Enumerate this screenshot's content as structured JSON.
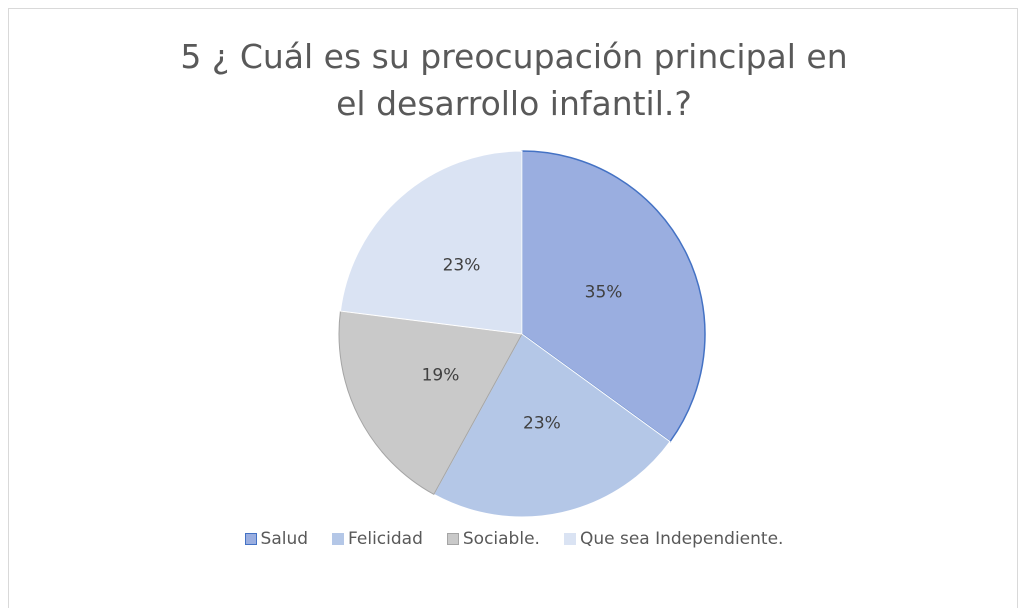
{
  "chart_data": {
    "type": "pie",
    "title": "5 ¿ Cuál es su preocupación principal en el desarrollo infantil.?",
    "categories": [
      "Salud",
      "Felicidad",
      "Sociable.",
      "Que sea Independiente."
    ],
    "values": [
      35,
      23,
      19,
      23
    ],
    "value_labels": [
      "35%",
      "23%",
      "19%",
      "23%"
    ],
    "colors": [
      "#9aaee0",
      "#b4c7e7",
      "#c9c9c9",
      "#dae3f3"
    ],
    "legend": "bottom"
  }
}
